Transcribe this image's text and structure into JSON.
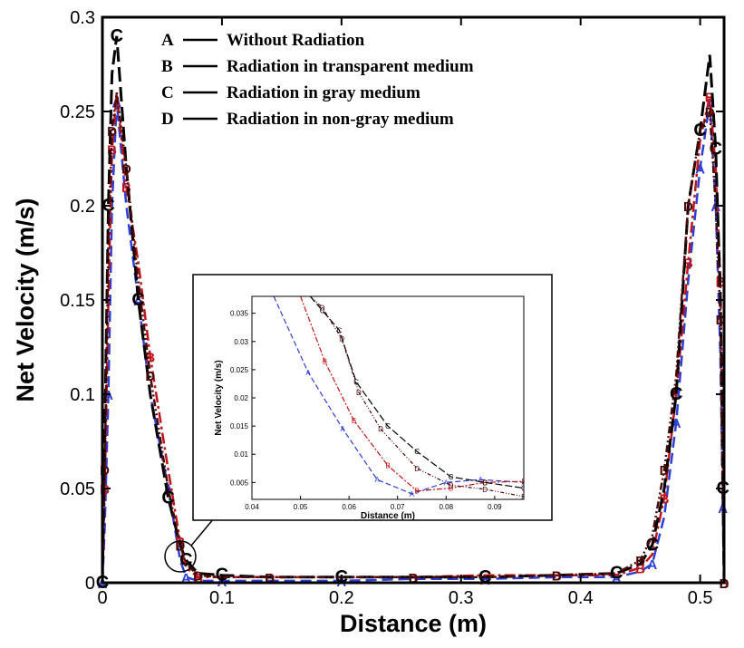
{
  "chart_data": {
    "type": "line",
    "title": "",
    "xlabel": "Distance (m)",
    "ylabel": "Net Velocity (m/s)",
    "xlim": [
      0,
      0.52
    ],
    "ylim": [
      0,
      0.3
    ],
    "x_ticks": [
      "0",
      "0.1",
      "0.2",
      "0.3",
      "0.4",
      "0.5"
    ],
    "y_ticks": [
      "0",
      "0.05",
      "0.1",
      "0.15",
      "0.2",
      "0.25",
      "0.3"
    ],
    "legend_position": "top-left",
    "series": [
      {
        "name": "Without Radiation",
        "marker": "A",
        "color": "#2e3fd6",
        "dash": "12,6",
        "x": [
          0,
          0.002,
          0.005,
          0.008,
          0.012,
          0.02,
          0.03,
          0.04,
          0.055,
          0.065,
          0.07,
          0.08,
          0.1,
          0.14,
          0.2,
          0.26,
          0.32,
          0.38,
          0.43,
          0.45,
          0.46,
          0.47,
          0.48,
          0.49,
          0.5,
          0.508,
          0.513,
          0.517,
          0.519,
          0.52
        ],
        "y": [
          0,
          0.03,
          0.1,
          0.2,
          0.255,
          0.2,
          0.15,
          0.1,
          0.05,
          0.012,
          0.003,
          0.001,
          0.001,
          0.001,
          0.001,
          0.002,
          0.002,
          0.003,
          0.003,
          0.006,
          0.01,
          0.035,
          0.085,
          0.16,
          0.22,
          0.255,
          0.2,
          0.12,
          0.04,
          0
        ]
      },
      {
        "name": "Radiation in transparent medium",
        "marker": "B",
        "color": "#c0141b",
        "dash": "12,4,3,4",
        "x": [
          0,
          0.002,
          0.005,
          0.008,
          0.012,
          0.02,
          0.03,
          0.04,
          0.055,
          0.065,
          0.07,
          0.08,
          0.1,
          0.14,
          0.2,
          0.26,
          0.32,
          0.38,
          0.43,
          0.45,
          0.46,
          0.47,
          0.48,
          0.49,
          0.5,
          0.508,
          0.513,
          0.517,
          0.519,
          0.52
        ],
        "y": [
          0,
          0.05,
          0.15,
          0.23,
          0.26,
          0.21,
          0.17,
          0.12,
          0.06,
          0.022,
          0.008,
          0.003,
          0.003,
          0.003,
          0.003,
          0.003,
          0.004,
          0.004,
          0.004,
          0.008,
          0.015,
          0.045,
          0.1,
          0.17,
          0.235,
          0.258,
          0.22,
          0.16,
          0.06,
          0
        ]
      },
      {
        "name": "Radiation in gray medium",
        "marker": "C",
        "color": "#000000",
        "dash": "16,6",
        "x": [
          0,
          0.002,
          0.005,
          0.008,
          0.012,
          0.02,
          0.03,
          0.04,
          0.055,
          0.065,
          0.07,
          0.08,
          0.1,
          0.14,
          0.2,
          0.26,
          0.32,
          0.38,
          0.43,
          0.45,
          0.46,
          0.47,
          0.48,
          0.49,
          0.5,
          0.508,
          0.513,
          0.517,
          0.519,
          0.52
        ],
        "y": [
          0,
          0.08,
          0.2,
          0.27,
          0.29,
          0.22,
          0.15,
          0.1,
          0.045,
          0.02,
          0.012,
          0.005,
          0.004,
          0.003,
          0.003,
          0.003,
          0.003,
          0.004,
          0.005,
          0.01,
          0.02,
          0.05,
          0.1,
          0.2,
          0.24,
          0.28,
          0.23,
          0.15,
          0.05,
          0
        ]
      },
      {
        "name": "Radiation in non-gray medium",
        "marker": "D",
        "color": "#4a0a0a",
        "dash": "8,3,2,3,2,3",
        "x": [
          0,
          0.002,
          0.005,
          0.008,
          0.012,
          0.02,
          0.03,
          0.04,
          0.055,
          0.065,
          0.07,
          0.08,
          0.1,
          0.14,
          0.2,
          0.26,
          0.32,
          0.38,
          0.43,
          0.45,
          0.46,
          0.47,
          0.48,
          0.49,
          0.5,
          0.508,
          0.513,
          0.517,
          0.519,
          0.52
        ],
        "y": [
          0,
          0.06,
          0.18,
          0.24,
          0.26,
          0.22,
          0.16,
          0.11,
          0.05,
          0.02,
          0.01,
          0.004,
          0.003,
          0.003,
          0.003,
          0.003,
          0.003,
          0.004,
          0.005,
          0.012,
          0.025,
          0.06,
          0.11,
          0.2,
          0.24,
          0.25,
          0.2,
          0.14,
          0.05,
          0
        ]
      }
    ],
    "inset": {
      "xlabel": "Distance (m)",
      "ylabel": "Net Velocity (m/s)",
      "xlim": [
        0.04,
        0.096
      ],
      "ylim": [
        0.002,
        0.038
      ],
      "x_ticks": [
        "0.04",
        "0.05",
        "0.06",
        "0.07",
        "0.08",
        "0.09"
      ],
      "y_ticks": [
        "0.005",
        "0.01",
        "0.015",
        "0.02",
        "0.025",
        "0.03",
        "0.035"
      ],
      "series": [
        {
          "marker": "A",
          "x": [
            0.0445,
            0.0516,
            0.0587,
            0.0658,
            0.0729,
            0.08,
            0.0871,
            0.096
          ],
          "y": [
            0.038,
            0.0245,
            0.0145,
            0.0055,
            0.003,
            0.005,
            0.0055,
            0.005
          ]
        },
        {
          "marker": "B",
          "x": [
            0.05,
            0.055,
            0.061,
            0.068,
            0.074,
            0.081,
            0.088,
            0.096
          ],
          "y": [
            0.038,
            0.0265,
            0.016,
            0.008,
            0.0035,
            0.004,
            0.005,
            0.0052
          ]
        },
        {
          "marker": "C",
          "x": [
            0.052,
            0.0545,
            0.058,
            0.0615,
            0.068,
            0.074,
            0.081,
            0.088,
            0.096
          ],
          "y": [
            0.038,
            0.0355,
            0.032,
            0.0228,
            0.015,
            0.0105,
            0.006,
            0.005,
            0.004
          ]
        },
        {
          "marker": "D",
          "x": [
            0.052,
            0.0545,
            0.0585,
            0.062,
            0.0665,
            0.074,
            0.081,
            0.088,
            0.096
          ],
          "y": [
            0.038,
            0.036,
            0.0305,
            0.021,
            0.0145,
            0.0075,
            0.0045,
            0.0038,
            0.0025
          ]
        }
      ]
    }
  },
  "legend": [
    {
      "marker": "A",
      "label": "Without Radiation"
    },
    {
      "marker": "B",
      "label": "Radiation in transparent medium"
    },
    {
      "marker": "C",
      "label": "Radiation in gray medium"
    },
    {
      "marker": "D",
      "label": "Radiation in non-gray medium"
    }
  ]
}
